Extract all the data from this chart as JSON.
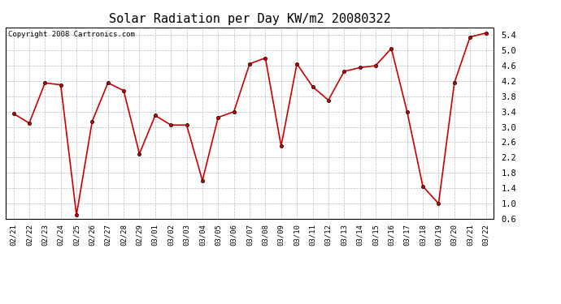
{
  "title": "Solar Radiation per Day KW/m2 20080322",
  "copyright_text": "Copyright 2008 Cartronics.com",
  "dates": [
    "02/21",
    "02/22",
    "02/23",
    "02/24",
    "02/25",
    "02/26",
    "02/27",
    "02/28",
    "02/29",
    "03/01",
    "03/02",
    "03/03",
    "03/04",
    "03/05",
    "03/06",
    "03/07",
    "03/08",
    "03/09",
    "03/10",
    "03/11",
    "03/12",
    "03/13",
    "03/14",
    "03/15",
    "03/16",
    "03/17",
    "03/18",
    "03/19",
    "03/20",
    "03/21",
    "03/22"
  ],
  "values": [
    3.35,
    3.1,
    4.15,
    4.1,
    0.7,
    3.15,
    4.15,
    3.95,
    2.3,
    3.3,
    3.05,
    3.05,
    1.6,
    3.25,
    3.4,
    4.65,
    4.8,
    2.5,
    4.65,
    4.05,
    3.7,
    4.45,
    4.55,
    4.6,
    5.05,
    3.4,
    1.45,
    1.0,
    4.15,
    5.35,
    5.45
  ],
  "line_color": "#cc0000",
  "marker": "o",
  "marker_size": 3,
  "marker_facecolor": "#cc0000",
  "marker_edgecolor": "#000000",
  "marker_edgewidth": 0.5,
  "ylim": [
    0.6,
    5.6
  ],
  "yticks": [
    0.6,
    1.0,
    1.4,
    1.8,
    2.2,
    2.6,
    3.0,
    3.4,
    3.8,
    4.2,
    4.6,
    5.0,
    5.4
  ],
  "bg_color": "#ffffff",
  "plot_bg_color": "#ffffff",
  "grid_color": "#bbbbbb",
  "title_fontsize": 11,
  "copyright_fontsize": 6.5,
  "tick_fontsize": 6.5,
  "ytick_fontsize": 7.5
}
